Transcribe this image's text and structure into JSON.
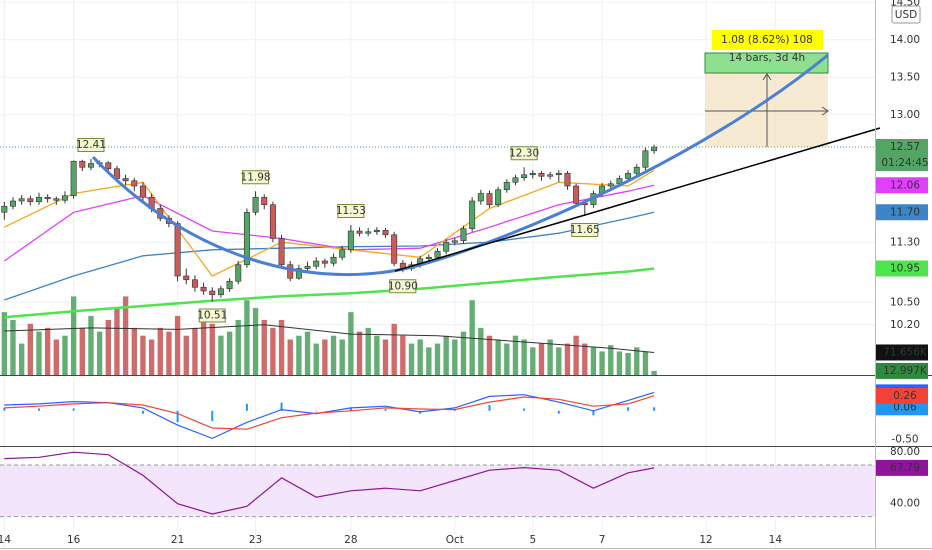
{
  "chart_data": [
    {
      "type": "candlestick",
      "currency": "USD",
      "countdown": "01:24:45",
      "xlim": [
        -0.5,
        100.5
      ],
      "xticks": [
        {
          "value": 0,
          "label": "14"
        },
        {
          "value": 8,
          "label": "16"
        },
        {
          "value": 20,
          "label": "21"
        },
        {
          "value": 29,
          "label": "23"
        },
        {
          "value": 40,
          "label": "28"
        },
        {
          "value": 52,
          "label": "Oct"
        },
        {
          "value": 61,
          "label": "5"
        },
        {
          "value": 69,
          "label": "7"
        },
        {
          "value": 81,
          "label": "12"
        },
        {
          "value": 89,
          "label": "14"
        }
      ],
      "ylim": [
        9.53,
        14.53
      ],
      "yticks": [
        {
          "value": 14.5,
          "label": "14.50"
        },
        {
          "value": 14,
          "label": "14.00"
        },
        {
          "value": 13.5,
          "label": "13.50"
        },
        {
          "value": 13,
          "label": "13.00"
        },
        {
          "value": 11.3,
          "label": "11.30"
        },
        {
          "value": 10.5,
          "label": "10.50"
        },
        {
          "value": 10.2,
          "label": "10.20"
        }
      ],
      "grid": true,
      "up_color": "#53a566",
      "down_color": "#c95b5b",
      "open": [
        11.7,
        11.78,
        11.85,
        11.88,
        11.84,
        11.9,
        11.88,
        11.86,
        11.92,
        12.38,
        12.3,
        12.35,
        12.36,
        12.28,
        12.15,
        12.12,
        12.05,
        11.9,
        11.75,
        11.62,
        11.55,
        10.85,
        10.8,
        10.7,
        10.65,
        10.6,
        10.68,
        10.78,
        11.0,
        11.7,
        11.9,
        11.8,
        11.35,
        11.0,
        10.82,
        10.95,
        10.98,
        11.05,
        11.02,
        11.1,
        11.2,
        11.45,
        11.42,
        11.44,
        11.46,
        11.4,
        11.02,
        10.95,
        11.0,
        11.08,
        11.1,
        11.18,
        11.3,
        11.32,
        11.48,
        11.85,
        11.95,
        11.8,
        12.0,
        12.1,
        12.16,
        12.2,
        12.22,
        12.18,
        12.2,
        12.22,
        12.05,
        11.82,
        11.8,
        11.95,
        12.05,
        12.08,
        12.15,
        12.22,
        12.3,
        12.52
      ],
      "high": [
        11.84,
        11.9,
        11.93,
        11.92,
        11.96,
        11.94,
        11.91,
        11.98,
        12.39,
        12.4,
        12.41,
        12.39,
        12.38,
        12.32,
        12.2,
        12.16,
        12.1,
        11.95,
        11.8,
        11.66,
        11.58,
        10.95,
        10.86,
        10.76,
        10.7,
        10.72,
        10.82,
        11.05,
        11.75,
        11.98,
        11.94,
        11.84,
        11.4,
        11.05,
        11.0,
        11.04,
        11.1,
        11.08,
        11.15,
        11.25,
        11.53,
        11.5,
        11.49,
        11.5,
        11.49,
        11.44,
        11.06,
        11.04,
        11.12,
        11.14,
        11.22,
        11.34,
        11.36,
        11.52,
        11.9,
        12.0,
        11.99,
        12.04,
        12.14,
        12.2,
        12.3,
        12.26,
        12.25,
        12.24,
        12.26,
        12.25,
        12.08,
        11.86,
        11.99,
        12.09,
        12.12,
        12.19,
        12.26,
        12.34,
        12.56,
        12.6
      ],
      "low": [
        11.6,
        11.74,
        11.8,
        11.79,
        11.8,
        11.83,
        11.8,
        11.82,
        11.88,
        12.25,
        12.26,
        12.3,
        12.22,
        12.1,
        12.06,
        11.98,
        11.85,
        11.7,
        11.58,
        11.5,
        10.78,
        10.74,
        10.64,
        10.6,
        10.51,
        10.56,
        10.64,
        10.74,
        10.96,
        11.66,
        11.74,
        11.3,
        10.95,
        10.78,
        10.8,
        10.9,
        10.94,
        10.96,
        10.98,
        11.06,
        11.16,
        11.38,
        11.38,
        11.4,
        11.36,
        10.98,
        10.9,
        10.92,
        10.96,
        11.04,
        11.06,
        11.14,
        11.26,
        11.28,
        11.44,
        11.8,
        11.76,
        11.77,
        11.96,
        12.06,
        12.12,
        12.15,
        12.12,
        12.14,
        12.1,
        12.0,
        11.78,
        11.65,
        11.76,
        11.91,
        12.0,
        12.04,
        12.11,
        12.18,
        12.26,
        12.48
      ],
      "close": [
        11.78,
        11.85,
        11.88,
        11.84,
        11.9,
        11.88,
        11.86,
        11.92,
        12.38,
        12.3,
        12.35,
        12.36,
        12.28,
        12.15,
        12.12,
        12.05,
        11.9,
        11.75,
        11.62,
        11.55,
        10.85,
        10.8,
        10.7,
        10.65,
        10.6,
        10.68,
        10.78,
        11.0,
        11.7,
        11.9,
        11.8,
        11.35,
        11.0,
        10.82,
        10.95,
        10.98,
        11.05,
        11.02,
        11.1,
        11.2,
        11.45,
        11.42,
        11.44,
        11.46,
        11.4,
        11.02,
        10.95,
        11.0,
        11.08,
        11.1,
        11.18,
        11.3,
        11.32,
        11.48,
        11.85,
        11.95,
        11.8,
        12.0,
        12.1,
        12.16,
        12.2,
        12.22,
        12.18,
        12.2,
        12.22,
        12.05,
        11.82,
        11.8,
        11.95,
        12.05,
        12.08,
        12.15,
        12.22,
        12.3,
        12.52,
        12.57
      ],
      "volume": {
        "ylim": [
          0,
          350
        ],
        "values": [
          200,
          175,
          100,
          163,
          138,
          150,
          113,
          125,
          250,
          150,
          188,
          138,
          175,
          213,
          250,
          150,
          125,
          113,
          150,
          138,
          188,
          125,
          150,
          200,
          163,
          125,
          138,
          175,
          238,
          213,
          175,
          150,
          175,
          113,
          125,
          138,
          100,
          113,
          125,
          113,
          200,
          138,
          150,
          125,
          113,
          163,
          125,
          100,
          113,
          88,
          100,
          125,
          113,
          138,
          238,
          150,
          125,
          113,
          100,
          125,
          113,
          88,
          100,
          113,
          88,
          100,
          125,
          100,
          88,
          75,
          95,
          75,
          70,
          88,
          75,
          12.997
        ],
        "ma": {
          "color": "#333333",
          "x": [
            0,
            10,
            20,
            30,
            40,
            50,
            60,
            70,
            75
          ],
          "values": [
            140,
            150,
            145,
            160,
            130,
            125,
            105,
            85,
            71.656
          ]
        },
        "labels": [
          {
            "value": 71.656,
            "label": "71.656K",
            "color": "#111111"
          },
          {
            "value": 12.997,
            "label": "12.997K",
            "color": "#2e8b3e"
          }
        ]
      },
      "overlays": [
        {
          "color": "#4ee44e",
          "x": [
            0,
            8,
            16,
            24,
            32,
            40,
            48,
            56,
            64,
            72,
            75
          ],
          "values": [
            10.3,
            10.38,
            10.45,
            10.52,
            10.58,
            10.62,
            10.68,
            10.76,
            10.84,
            10.91,
            10.95
          ]
        },
        {
          "color": "#3d85c6",
          "x": [
            0,
            8,
            16,
            24,
            32,
            40,
            48,
            56,
            64,
            72,
            75
          ],
          "values": [
            10.53,
            10.85,
            11.12,
            11.2,
            11.22,
            11.24,
            11.25,
            11.3,
            11.42,
            11.62,
            11.7
          ]
        },
        {
          "color": "#e040fb",
          "x": [
            0,
            8,
            16,
            24,
            32,
            40,
            48,
            56,
            64,
            72,
            75
          ],
          "values": [
            11.05,
            11.7,
            11.92,
            11.45,
            11.35,
            11.2,
            11.22,
            11.5,
            11.8,
            11.98,
            12.06
          ]
        },
        {
          "color": "#f5a623",
          "x": [
            0,
            8,
            16,
            24,
            32,
            40,
            48,
            56,
            64,
            72,
            75
          ],
          "values": [
            11.5,
            11.95,
            12.1,
            10.85,
            11.3,
            11.2,
            11.1,
            11.75,
            12.1,
            12.05,
            12.26
          ]
        }
      ],
      "last_labels": [
        {
          "value": 12.57,
          "label": "12.57",
          "color": "#53a566"
        },
        {
          "value": 12.06,
          "label": "12.06",
          "color": "#e040fb"
        },
        {
          "value": 11.7,
          "label": "11.70",
          "color": "#3d85c6"
        },
        {
          "value": 10.95,
          "label": "10.95",
          "color": "#4ee44e"
        }
      ],
      "price_labels": [
        {
          "bar": 10,
          "side": "high",
          "label": "12.41"
        },
        {
          "bar": 24,
          "side": "low",
          "label": "10.51"
        },
        {
          "bar": 29,
          "side": "high",
          "label": "11.98"
        },
        {
          "bar": 40,
          "side": "high",
          "label": "11.53"
        },
        {
          "bar": 46,
          "side": "low",
          "label": "10.90"
        },
        {
          "bar": 60,
          "side": "high",
          "label": "12.30"
        },
        {
          "bar": 67,
          "side": "low",
          "label": "11.65"
        }
      ],
      "measure": {
        "label": "1.08 (8.62%) 108",
        "sublabel": "14 bars, 3d 4h"
      }
    },
    {
      "type": "macd",
      "ylim": [
        -0.613,
        0.605
      ],
      "yticks": [
        {
          "value": -0.5,
          "label": "-0.50"
        }
      ],
      "x": [
        0,
        4,
        8,
        12,
        16,
        20,
        24,
        28,
        32,
        36,
        40,
        44,
        48,
        52,
        56,
        60,
        64,
        68,
        72,
        75
      ],
      "series": [
        {
          "style": "histogram",
          "color": "#2196f3",
          "values": [
            0.05,
            0.04,
            0.04,
            0.0,
            -0.05,
            -0.2,
            -0.18,
            0.12,
            0.14,
            -0.01,
            0.05,
            0.03,
            -0.05,
            0.03,
            0.1,
            0.04,
            -0.05,
            -0.08,
            0.06,
            0.06
          ]
        },
        {
          "style": "line",
          "color": "#2962ff",
          "values": [
            0.1,
            0.12,
            0.16,
            0.14,
            0.05,
            -0.25,
            -0.48,
            -0.2,
            0.02,
            -0.05,
            0.05,
            0.08,
            -0.02,
            0.05,
            0.25,
            0.28,
            0.15,
            0.0,
            0.18,
            0.32
          ]
        },
        {
          "style": "line",
          "color": "#f44336",
          "values": [
            0.05,
            0.08,
            0.12,
            0.14,
            0.1,
            -0.05,
            -0.3,
            -0.32,
            -0.12,
            -0.04,
            0.0,
            0.05,
            0.03,
            0.02,
            0.15,
            0.24,
            0.2,
            0.08,
            0.12,
            0.26
          ]
        }
      ]
    },
    {
      "type": "rsi",
      "ylim": [
        5.6,
        84
      ],
      "yticks": [
        {
          "value": 80,
          "label": "80.00"
        },
        {
          "value": 40,
          "label": "40.00"
        }
      ],
      "band": [
        30,
        70
      ],
      "x": [
        0,
        4,
        8,
        12,
        16,
        20,
        24,
        28,
        32,
        36,
        40,
        44,
        48,
        52,
        56,
        60,
        64,
        68,
        72,
        75
      ],
      "series": [
        {
          "style": "line",
          "color": "#8e1599",
          "values": [
            75,
            76,
            80,
            78,
            62,
            40,
            32,
            38,
            60,
            45,
            50,
            52,
            50,
            58,
            66,
            68,
            66,
            52,
            64,
            67.79
          ]
        }
      ]
    }
  ]
}
